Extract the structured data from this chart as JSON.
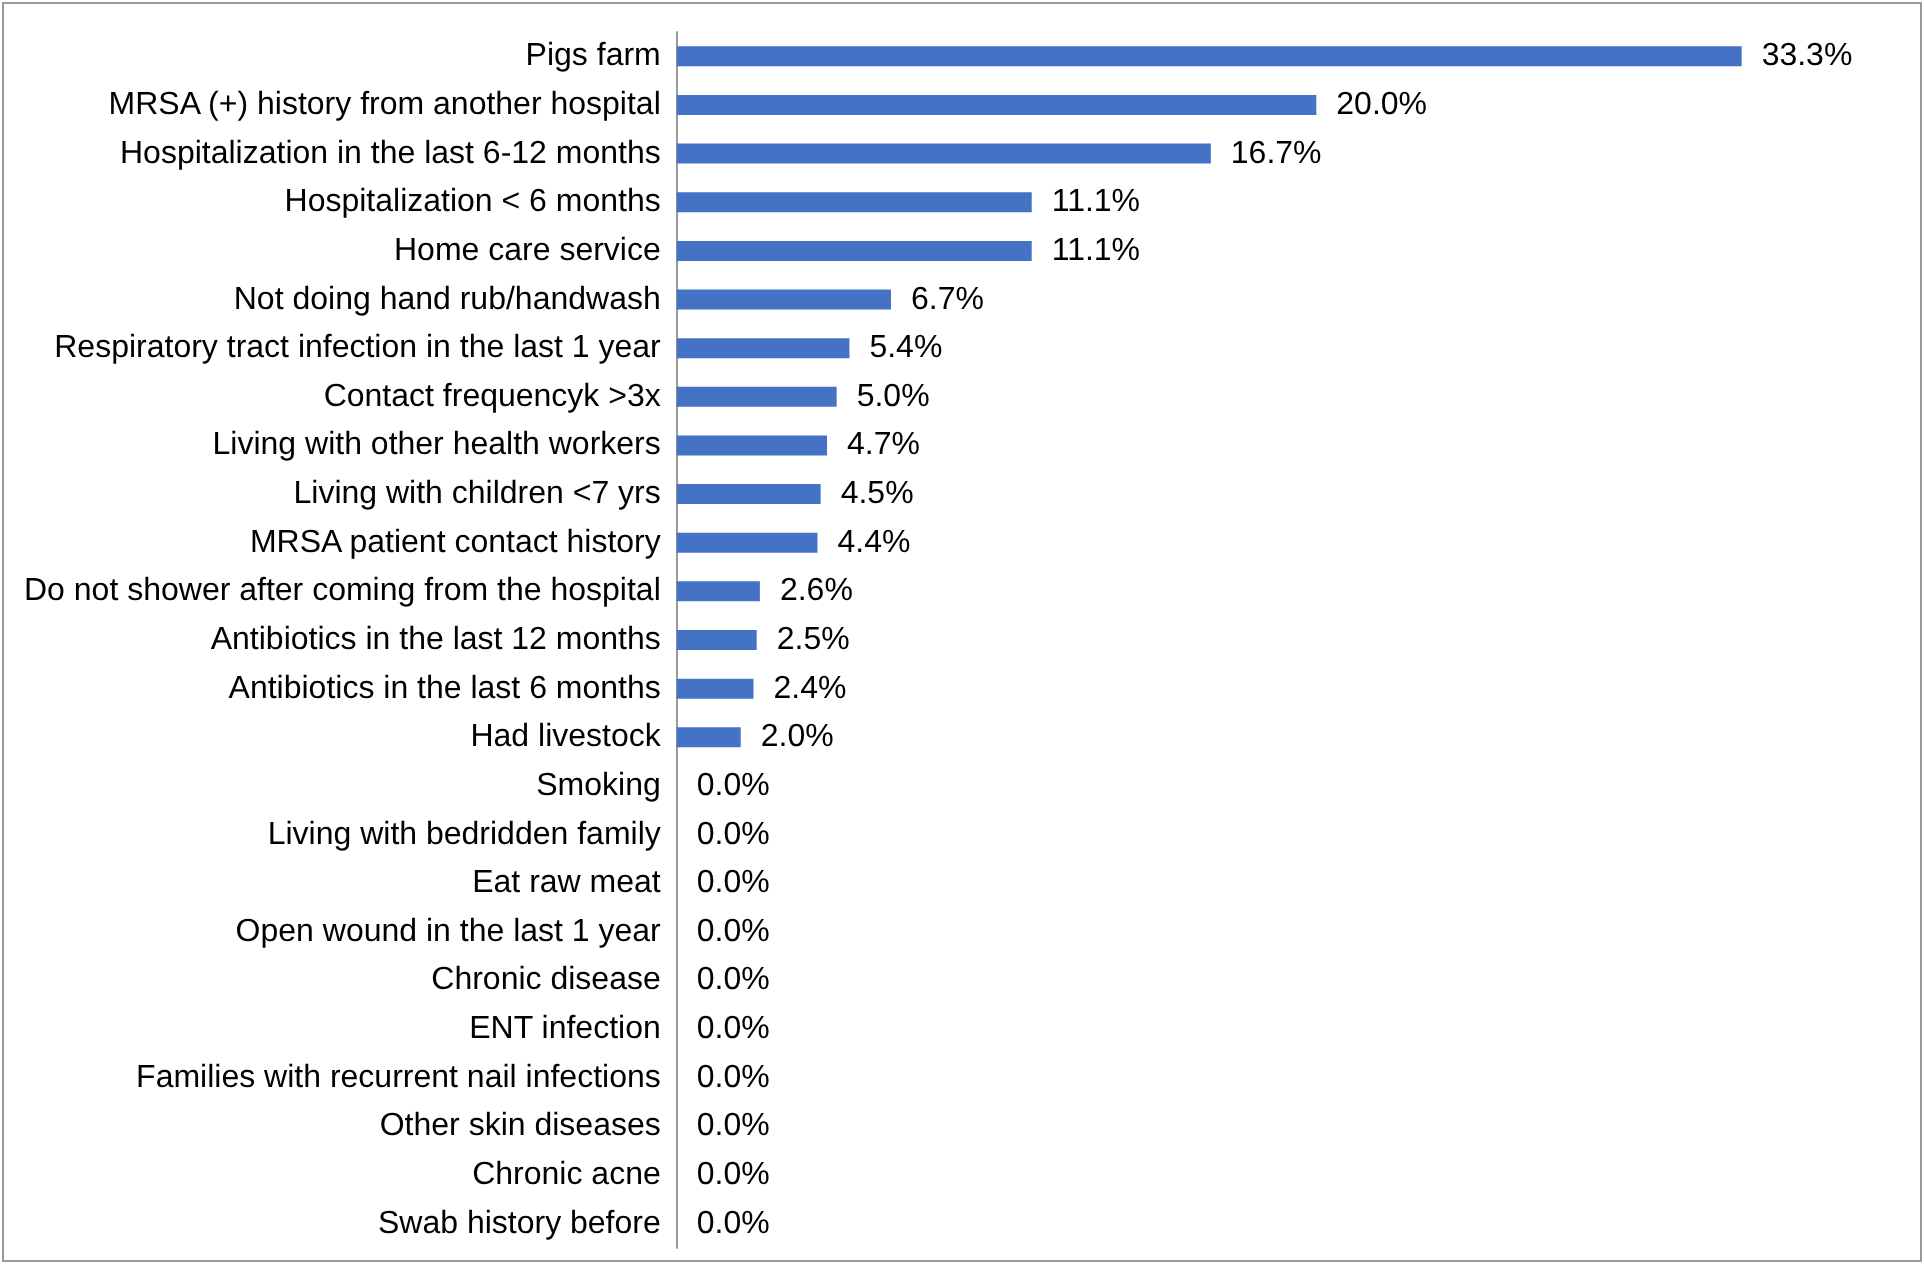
{
  "chart_data": {
    "type": "bar",
    "orientation": "horizontal",
    "categories": [
      "Pigs farm",
      "MRSA (+) history from another hospital",
      "Hospitalization in the last 6-12 months",
      "Hospitalization < 6 months",
      "Home care service",
      "Not doing hand rub/handwash",
      "Respiratory tract infection in the last 1 year",
      "Contact frequencyk >3x",
      "Living with other health workers",
      "Living with children <7 yrs",
      "MRSA patient contact history",
      "Do not shower after coming from the hospital",
      "Antibiotics in the last 12 months",
      "Antibiotics in the last 6 months",
      "Had livestock",
      "Smoking",
      "Living with bedridden family",
      "Eat raw meat",
      "Open wound in the last 1 year",
      "Chronic disease",
      "ENT infection",
      "Families with recurrent nail infections",
      "Other skin diseases",
      "Chronic acne",
      "Swab history before"
    ],
    "values": [
      33.3,
      20.0,
      16.7,
      11.1,
      11.1,
      6.7,
      5.4,
      5.0,
      4.7,
      4.5,
      4.4,
      2.6,
      2.5,
      2.4,
      2.0,
      0,
      0,
      0,
      0,
      0,
      0,
      0,
      0,
      0,
      0
    ],
    "value_labels": [
      "33.3%",
      "20.0%",
      "16.7%",
      "11.1%",
      "11.1%",
      "6.7%",
      "5.4%",
      "5.0%",
      "4.7%",
      "4.5%",
      "4.4%",
      "2.6%",
      "2.5%",
      "2.4%",
      "2.0%",
      "0.0%",
      "0.0%",
      "0.0%",
      "0.0%",
      "0.0%",
      "0.0%",
      "0.0%",
      "0.0%",
      "0.0%",
      "0.0%"
    ],
    "color": "#4472c4",
    "grid": false
  }
}
